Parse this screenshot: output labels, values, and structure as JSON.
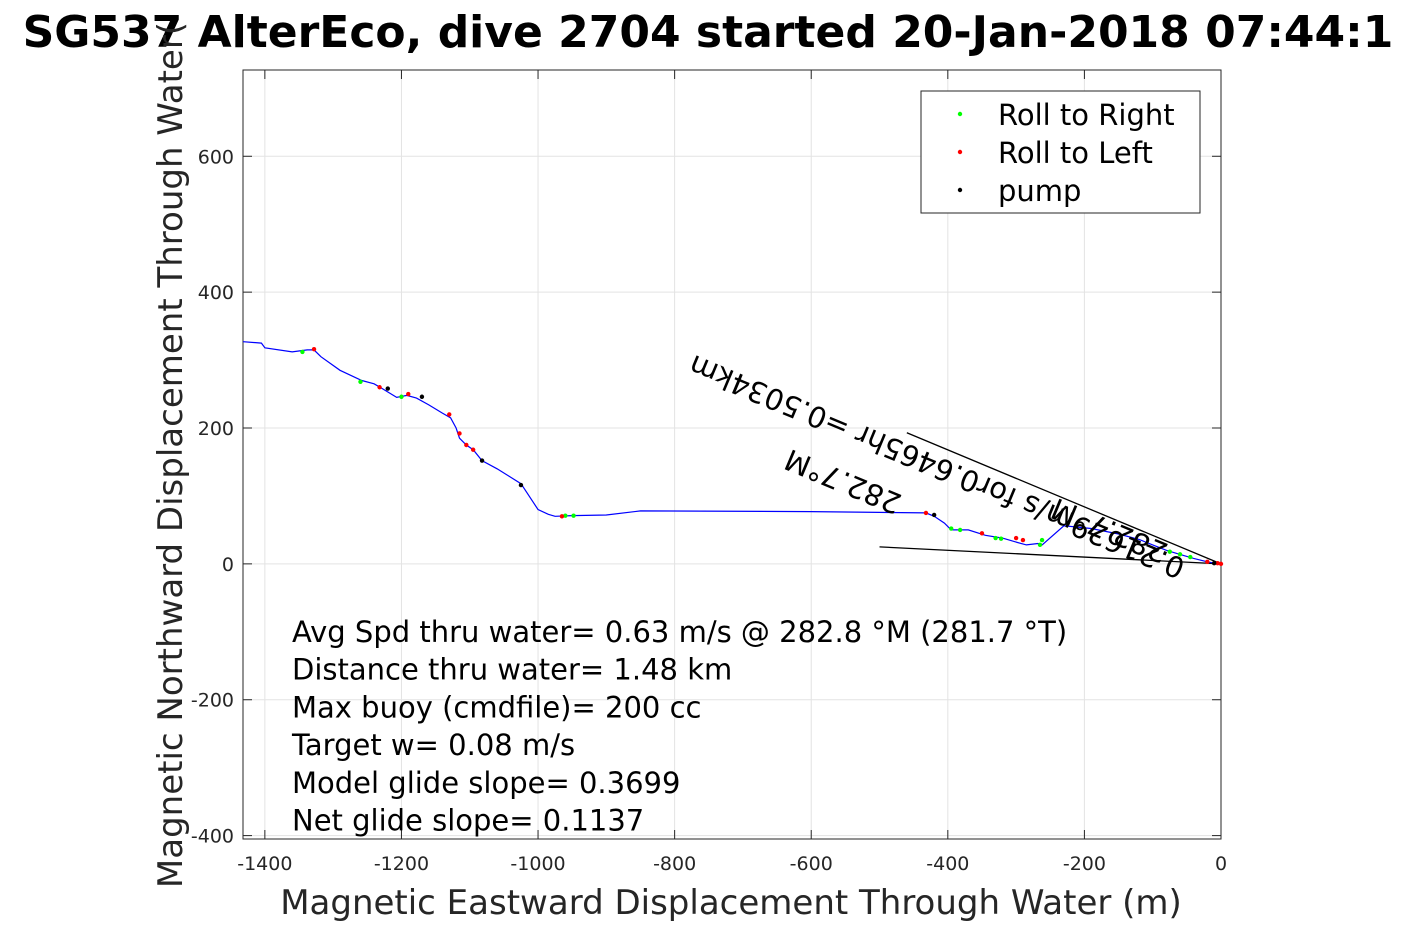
{
  "chart_data": {
    "type": "line",
    "title": "SG537 AlterEco, dive 2704 started 20-Jan-2018 07:44:1",
    "xlabel": "Magnetic Eastward Displacement Through Water (m)",
    "ylabel": "Magnetic Northward Displacement Through Water(",
    "xlim": [
      -1432,
      0
    ],
    "ylim": [
      -405,
      727
    ],
    "grid": true,
    "xticks": [
      -1400,
      -1200,
      -1000,
      -800,
      -600,
      -400,
      -200,
      0
    ],
    "yticks": [
      -400,
      -200,
      0,
      200,
      400,
      600
    ],
    "xtick_labels": [
      "-1400",
      "-1200",
      "-1000",
      "-800",
      "-600",
      "-400",
      "-200",
      "0"
    ],
    "ytick_labels": [
      "-400",
      "-200",
      "0",
      "200",
      "400",
      "600"
    ],
    "legend": {
      "placement": "top-right",
      "entries": [
        {
          "label": "Roll to Right",
          "color": "#00ff00"
        },
        {
          "label": "Roll to Left",
          "color": "#ff0000"
        },
        {
          "label": "pump",
          "color": "#000000"
        }
      ]
    },
    "series": [
      {
        "color": "#0000ff",
        "x": [
          0,
          -5,
          -20,
          -40,
          -60,
          -80,
          -100,
          -120,
          -150,
          -190,
          -230,
          -262,
          -268,
          -285,
          -300,
          -320,
          -345,
          -370,
          -395,
          -405,
          -420,
          -432,
          -600,
          -850,
          -900,
          -950,
          -975,
          -985,
          -1000,
          -1025,
          -1060,
          -1082,
          -1095,
          -1105,
          -1115,
          -1120,
          -1128,
          -1140,
          -1160,
          -1178,
          -1192,
          -1207,
          -1228,
          -1240,
          -1258,
          -1290,
          -1318,
          -1328,
          -1338,
          -1360,
          -1400,
          -1405,
          -1432
        ],
        "y": [
          0,
          0,
          3,
          8,
          14,
          20,
          28,
          36,
          44,
          52,
          56,
          28,
          30,
          28,
          32,
          38,
          42,
          50,
          50,
          60,
          70,
          75,
          77,
          78,
          72,
          71,
          70,
          73,
          80,
          118,
          140,
          152,
          168,
          175,
          185,
          200,
          215,
          222,
          234,
          244,
          248,
          245,
          258,
          265,
          270,
          285,
          305,
          315,
          315,
          312,
          318,
          325,
          327
        ]
      }
    ],
    "roll_right_points": [
      {
        "x": -948,
        "y": 71
      },
      {
        "x": -960,
        "y": 71
      },
      {
        "x": -1260,
        "y": 268
      },
      {
        "x": -1200,
        "y": 246
      },
      {
        "x": -1345,
        "y": 312
      },
      {
        "x": -395,
        "y": 52
      },
      {
        "x": -382,
        "y": 50
      },
      {
        "x": -330,
        "y": 38
      },
      {
        "x": -322,
        "y": 37
      },
      {
        "x": -265,
        "y": 28
      },
      {
        "x": -262,
        "y": 35
      },
      {
        "x": -75,
        "y": 18
      },
      {
        "x": -60,
        "y": 14
      },
      {
        "x": -45,
        "y": 10
      }
    ],
    "roll_left_points": [
      {
        "x": -965,
        "y": 70
      },
      {
        "x": -1232,
        "y": 260
      },
      {
        "x": -1190,
        "y": 250
      },
      {
        "x": -1130,
        "y": 220
      },
      {
        "x": -1115,
        "y": 192
      },
      {
        "x": -1105,
        "y": 175
      },
      {
        "x": -1095,
        "y": 168
      },
      {
        "x": -1328,
        "y": 316
      },
      {
        "x": -432,
        "y": 75
      },
      {
        "x": -350,
        "y": 45
      },
      {
        "x": -300,
        "y": 38
      },
      {
        "x": -290,
        "y": 35
      },
      {
        "x": -20,
        "y": 3
      },
      {
        "x": -5,
        "y": 1
      },
      {
        "x": 0,
        "y": 0
      }
    ],
    "pump_points": [
      {
        "x": -1025,
        "y": 116
      },
      {
        "x": -1082,
        "y": 152
      },
      {
        "x": -1170,
        "y": 246
      },
      {
        "x": -1220,
        "y": 258
      },
      {
        "x": -420,
        "y": 72
      },
      {
        "x": -10,
        "y": 1
      }
    ],
    "reference_lines": [
      {
        "x": [
          0,
          -460
        ],
        "y": [
          0,
          193
        ]
      },
      {
        "x": [
          0,
          -500
        ],
        "y": [
          0,
          25
        ]
      }
    ],
    "rotated_annotations": [
      {
        "text": "0.21629m/s for0.6465hr =0.5034km",
        "x": -50,
        "y": 5,
        "angle": 22.7
      },
      {
        "text": "282.7°M",
        "x": -75,
        "y": 28,
        "angle": 22.7
      },
      {
        "text": "282.7°M",
        "x": -465,
        "y": 100,
        "angle": 22.7
      }
    ],
    "annotations": [
      "Avg Spd thru water=  0.63 m/s @ 282.8 °M (281.7 °T)",
      "Distance thru water=  1.48 km",
      "Max buoy (cmdfile)= 200 cc",
      "Target w= 0.08 m/s",
      "Model glide slope= 0.3699",
      "Net glide slope= 0.1137"
    ]
  }
}
